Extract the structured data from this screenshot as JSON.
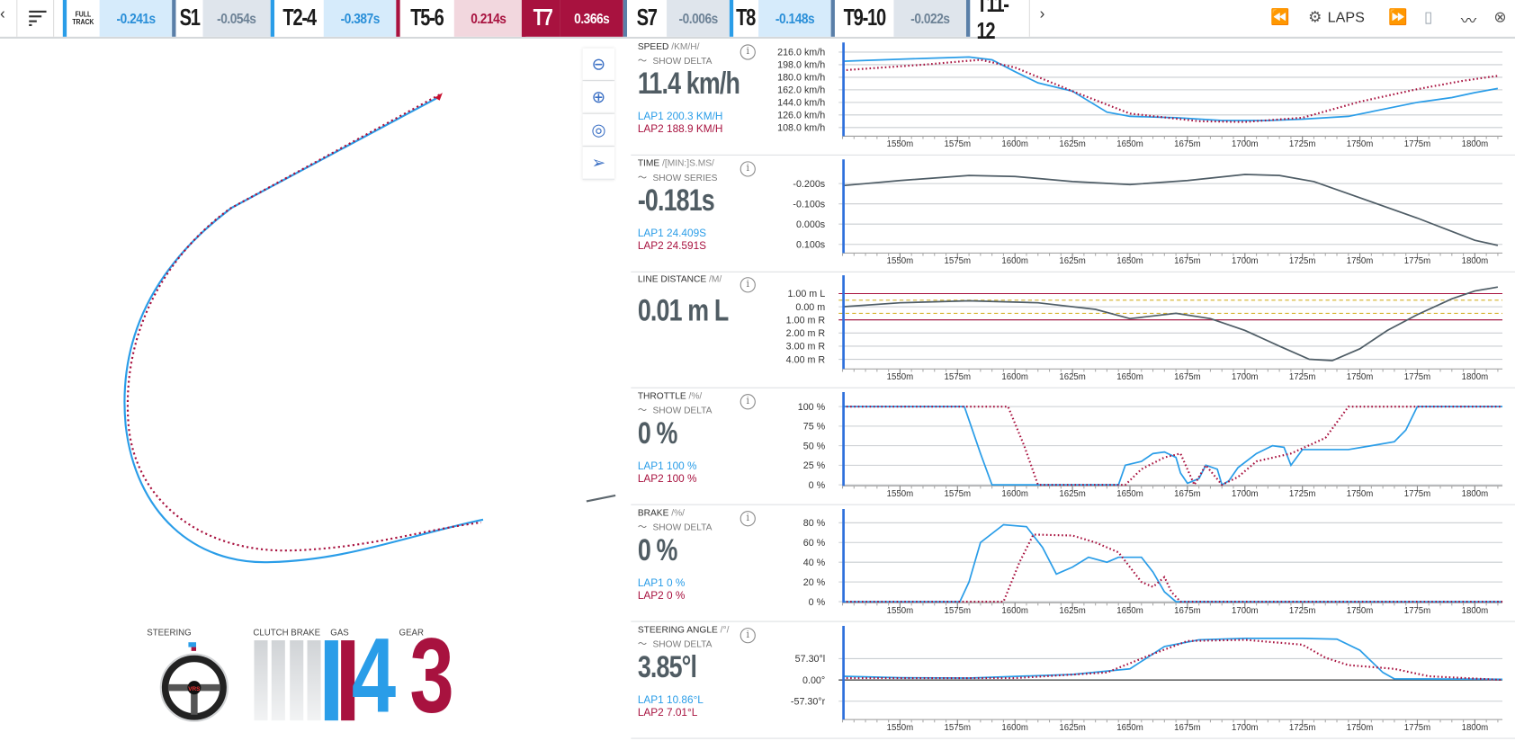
{
  "topbar": {
    "back_icon": "chevron-left-icon",
    "menu_icon": "sort-lines-icon",
    "full_track_label": [
      "FULL",
      "TRACK"
    ],
    "full_track_delta": "-0.241s",
    "sectors": [
      {
        "name": "S1",
        "delta": "-0.054s",
        "state": "neutral"
      },
      {
        "name": "T2-4",
        "delta": "-0.387s",
        "state": "faster"
      },
      {
        "name": "T5-6",
        "delta": "0.214s",
        "state": "slower"
      },
      {
        "name": "T7",
        "delta": "0.366s",
        "state": "selected"
      },
      {
        "name": "S7",
        "delta": "-0.006s",
        "state": "neutral"
      },
      {
        "name": "T8",
        "delta": "-0.148s",
        "state": "faster"
      },
      {
        "name": "T9-10",
        "delta": "-0.022s",
        "state": "neutral"
      },
      {
        "name": "T11-12",
        "delta": "",
        "state": "neutral"
      }
    ],
    "next_icon": "chevron-right-icon",
    "laps_label": "LAPS",
    "right_icons": [
      "rewind-icon",
      "gear-icon",
      "fast-forward-icon",
      "map-icon",
      "chart-line-icon",
      "close-circle-icon"
    ]
  },
  "colors": {
    "lap1": "#2a9de8",
    "lap2": "#a8123f",
    "text": "#505c63",
    "faster_bg": "#d6ebfb",
    "slower_bg": "#f2d7de",
    "neutral_bg": "#dfe5ec",
    "selected_bg": "#a8123f"
  },
  "map_tools": [
    "zoom-out-icon",
    "zoom-in-icon",
    "compass-icon",
    "locate-arrow-icon"
  ],
  "x_ticks": [
    "1550m",
    "1575m",
    "1600m",
    "1625m",
    "1650m",
    "1675m",
    "1700m",
    "1725m",
    "1750m",
    "1775m",
    "1800m"
  ],
  "panels": [
    {
      "label": "SPEED",
      "unit": "/KM/H/",
      "toggle": "SHOW DELTA",
      "value": "11.4 km/h",
      "lap1": "LAP1 200.3 KM/H",
      "lap2": "LAP2 188.9 KM/H"
    },
    {
      "label": "TIME",
      "unit": "/[MIN:]S.MS/",
      "toggle": "SHOW SERIES",
      "value": "-0.181s",
      "lap1": "LAP1 24.409S",
      "lap2": "LAP2 24.591S"
    },
    {
      "label": "LINE DISTANCE",
      "unit": "/M/",
      "toggle": "",
      "value": "0.01 m L",
      "lap1": "",
      "lap2": ""
    },
    {
      "label": "THROTTLE",
      "unit": "/%/",
      "toggle": "SHOW DELTA",
      "value": "0 %",
      "lap1": "LAP1 100 %",
      "lap2": "LAP2 100 %"
    },
    {
      "label": "BRAKE",
      "unit": "/%/",
      "toggle": "SHOW DELTA",
      "value": "0 %",
      "lap1": "LAP1 0 %",
      "lap2": "LAP2 0 %"
    },
    {
      "label": "STEERING ANGLE",
      "unit": "/°/",
      "toggle": "SHOW DELTA",
      "value": "3.85°l",
      "lap1": "LAP1 10.86°L",
      "lap2": "LAP2 7.01°L"
    }
  ],
  "chart_data": [
    {
      "type": "line",
      "xlim": [
        1525,
        1812
      ],
      "ylim": [
        97,
        227
      ],
      "yticks": [
        {
          "v": 216,
          "t": "216.0 km/h"
        },
        {
          "v": 198,
          "t": "198.0 km/h"
        },
        {
          "v": 180,
          "t": "180.0 km/h"
        },
        {
          "v": 162,
          "t": "162.0 km/h"
        },
        {
          "v": 144,
          "t": "144.0 km/h"
        },
        {
          "v": 126,
          "t": "126.0 km/h"
        },
        {
          "v": 108,
          "t": "108.0 km/h"
        }
      ],
      "series": [
        {
          "lap": 1,
          "points": [
            [
              1525,
              203
            ],
            [
              1560,
              207
            ],
            [
              1580,
              209
            ],
            [
              1590,
              205
            ],
            [
              1600,
              188
            ],
            [
              1610,
              172
            ],
            [
              1625,
              160
            ],
            [
              1640,
              130
            ],
            [
              1650,
              124
            ],
            [
              1670,
              122
            ],
            [
              1690,
              118
            ],
            [
              1710,
              118
            ],
            [
              1725,
              120
            ],
            [
              1745,
              124
            ],
            [
              1760,
              134
            ],
            [
              1775,
              144
            ],
            [
              1790,
              151
            ],
            [
              1800,
              158
            ],
            [
              1810,
              164
            ]
          ]
        },
        {
          "lap": 2,
          "points": [
            [
              1525,
              190
            ],
            [
              1560,
              198
            ],
            [
              1585,
              205
            ],
            [
              1600,
              194
            ],
            [
              1625,
              160
            ],
            [
              1650,
              128
            ],
            [
              1680,
              117
            ],
            [
              1700,
              116
            ],
            [
              1725,
              122
            ],
            [
              1750,
              145
            ],
            [
              1775,
              163
            ],
            [
              1795,
              175
            ],
            [
              1810,
              182
            ]
          ]
        }
      ]
    },
    {
      "type": "line",
      "xlim": [
        1525,
        1812
      ],
      "ylim": [
        -0.31,
        0.138
      ],
      "inverted": true,
      "yticks": [
        {
          "v": -0.2,
          "t": "-0.200s"
        },
        {
          "v": -0.1,
          "t": "-0.100s"
        },
        {
          "v": 0,
          "t": "0.000s"
        },
        {
          "v": 0.1,
          "t": "0.100s"
        }
      ],
      "series": [
        {
          "lap": 0,
          "points": [
            [
              1525,
              -0.19
            ],
            [
              1550,
              -0.215
            ],
            [
              1580,
              -0.24
            ],
            [
              1600,
              -0.235
            ],
            [
              1625,
              -0.21
            ],
            [
              1650,
              -0.195
            ],
            [
              1675,
              -0.215
            ],
            [
              1700,
              -0.245
            ],
            [
              1715,
              -0.24
            ],
            [
              1730,
              -0.21
            ],
            [
              1750,
              -0.13
            ],
            [
              1775,
              -0.03
            ],
            [
              1800,
              0.08
            ],
            [
              1810,
              0.105
            ]
          ]
        }
      ]
    },
    {
      "type": "line",
      "xlim": [
        1525,
        1812
      ],
      "ylim": [
        -4.66,
        2.25
      ],
      "yticks": [
        {
          "v": 1,
          "t": "1.00 m L"
        },
        {
          "v": 0,
          "t": "0.00 m"
        },
        {
          "v": -1,
          "t": "1.00 m R"
        },
        {
          "v": -2,
          "t": "2.00 m R"
        },
        {
          "v": -3,
          "t": "3.00 m R"
        },
        {
          "v": -4,
          "t": "4.00 m R"
        }
      ],
      "reference_lines": [
        {
          "v": 1,
          "color": "#a8123f"
        },
        {
          "v": -1,
          "color": "#a8123f"
        },
        {
          "v": 0.5,
          "color": "#d4b12a",
          "dashed": true
        },
        {
          "v": -0.5,
          "color": "#d4b12a",
          "dashed": true
        }
      ],
      "series": [
        {
          "lap": 0,
          "points": [
            [
              1525,
              0
            ],
            [
              1550,
              0.3
            ],
            [
              1580,
              0.45
            ],
            [
              1610,
              0.3
            ],
            [
              1635,
              -0.2
            ],
            [
              1650,
              -0.9
            ],
            [
              1670,
              -0.5
            ],
            [
              1685,
              -0.9
            ],
            [
              1700,
              -1.8
            ],
            [
              1715,
              -3.0
            ],
            [
              1728,
              -4.0
            ],
            [
              1738,
              -4.1
            ],
            [
              1750,
              -3.2
            ],
            [
              1762,
              -1.8
            ],
            [
              1775,
              -0.6
            ],
            [
              1790,
              0.6
            ],
            [
              1800,
              1.2
            ],
            [
              1810,
              1.5
            ]
          ]
        }
      ]
    },
    {
      "type": "line",
      "xlim": [
        1525,
        1812
      ],
      "ylim": [
        0,
        116
      ],
      "yticks": [
        {
          "v": 100,
          "t": "100 %"
        },
        {
          "v": 75,
          "t": "75 %"
        },
        {
          "v": 50,
          "t": "50 %"
        },
        {
          "v": 25,
          "t": "25 %"
        },
        {
          "v": 0,
          "t": "0 %"
        }
      ],
      "series": [
        {
          "lap": 1,
          "points": [
            [
              1525,
              100
            ],
            [
              1578,
              100
            ],
            [
              1585,
              40
            ],
            [
              1590,
              0
            ],
            [
              1645,
              0
            ],
            [
              1648,
              25
            ],
            [
              1655,
              30
            ],
            [
              1660,
              40
            ],
            [
              1665,
              42
            ],
            [
              1670,
              35
            ],
            [
              1672,
              15
            ],
            [
              1675,
              2
            ],
            [
              1680,
              8
            ],
            [
              1683,
              25
            ],
            [
              1688,
              20
            ],
            [
              1690,
              0
            ],
            [
              1693,
              5
            ],
            [
              1697,
              22
            ],
            [
              1705,
              40
            ],
            [
              1712,
              50
            ],
            [
              1717,
              48
            ],
            [
              1720,
              25
            ],
            [
              1725,
              45
            ],
            [
              1745,
              45
            ],
            [
              1755,
              50
            ],
            [
              1765,
              55
            ],
            [
              1770,
              70
            ],
            [
              1775,
              100
            ],
            [
              1812,
              100
            ]
          ]
        },
        {
          "lap": 2,
          "points": [
            [
              1525,
              100
            ],
            [
              1597,
              100
            ],
            [
              1604,
              50
            ],
            [
              1610,
              0
            ],
            [
              1648,
              0
            ],
            [
              1655,
              20
            ],
            [
              1665,
              35
            ],
            [
              1672,
              40
            ],
            [
              1678,
              0
            ],
            [
              1683,
              25
            ],
            [
              1690,
              0
            ],
            [
              1697,
              10
            ],
            [
              1705,
              30
            ],
            [
              1720,
              40
            ],
            [
              1735,
              60
            ],
            [
              1740,
              80
            ],
            [
              1745,
              100
            ],
            [
              1812,
              100
            ]
          ]
        }
      ]
    },
    {
      "type": "line",
      "xlim": [
        1525,
        1812
      ],
      "ylim": [
        0,
        92
      ],
      "yticks": [
        {
          "v": 80,
          "t": "80 %"
        },
        {
          "v": 60,
          "t": "60 %"
        },
        {
          "v": 40,
          "t": "40 %"
        },
        {
          "v": 20,
          "t": "20 %"
        },
        {
          "v": 0,
          "t": "0 %"
        }
      ],
      "series": [
        {
          "lap": 1,
          "points": [
            [
              1525,
              0
            ],
            [
              1576,
              0
            ],
            [
              1580,
              20
            ],
            [
              1585,
              60
            ],
            [
              1595,
              78
            ],
            [
              1605,
              76
            ],
            [
              1612,
              55
            ],
            [
              1618,
              28
            ],
            [
              1625,
              35
            ],
            [
              1632,
              45
            ],
            [
              1640,
              40
            ],
            [
              1645,
              45
            ],
            [
              1655,
              45
            ],
            [
              1660,
              30
            ],
            [
              1665,
              10
            ],
            [
              1670,
              0
            ],
            [
              1812,
              0
            ]
          ]
        },
        {
          "lap": 2,
          "points": [
            [
              1525,
              0
            ],
            [
              1595,
              0
            ],
            [
              1602,
              40
            ],
            [
              1608,
              68
            ],
            [
              1625,
              67
            ],
            [
              1635,
              60
            ],
            [
              1645,
              50
            ],
            [
              1655,
              20
            ],
            [
              1660,
              15
            ],
            [
              1665,
              25
            ],
            [
              1668,
              10
            ],
            [
              1672,
              0
            ],
            [
              1812,
              0
            ]
          ]
        }
      ]
    },
    {
      "type": "line",
      "xlim": [
        1525,
        1812
      ],
      "ylim": [
        -104,
        140.6
      ],
      "yticks": [
        {
          "v": 57.3,
          "t": "57.30°l"
        },
        {
          "v": 0,
          "t": "0.00°"
        },
        {
          "v": -57.3,
          "t": "-57.30°r"
        }
      ],
      "zero_line": true,
      "series": [
        {
          "lap": 1,
          "points": [
            [
              1525,
              10
            ],
            [
              1550,
              6
            ],
            [
              1580,
              5
            ],
            [
              1625,
              15
            ],
            [
              1650,
              30
            ],
            [
              1665,
              90
            ],
            [
              1680,
              108
            ],
            [
              1700,
              112
            ],
            [
              1725,
              112
            ],
            [
              1740,
              110
            ],
            [
              1750,
              80
            ],
            [
              1760,
              20
            ],
            [
              1765,
              3
            ],
            [
              1812,
              2
            ]
          ]
        },
        {
          "lap": 2,
          "points": [
            [
              1525,
              5
            ],
            [
              1600,
              5
            ],
            [
              1640,
              20
            ],
            [
              1660,
              70
            ],
            [
              1675,
              105
            ],
            [
              1700,
              108
            ],
            [
              1725,
              95
            ],
            [
              1735,
              60
            ],
            [
              1745,
              40
            ],
            [
              1765,
              30
            ],
            [
              1780,
              10
            ],
            [
              1812,
              0
            ]
          ]
        }
      ]
    }
  ],
  "dashboard": {
    "steering_label": "STEERING",
    "clutch_label": "CLUTCH",
    "brake_label": "BRAKE",
    "gas_label": "GAS",
    "gear_label": "GEAR",
    "gear_lap1": "4",
    "gear_lap2": "3",
    "gas_lap1": 100,
    "gas_lap2": 100,
    "brake_lap1": 0,
    "brake_lap2": 0,
    "clutch_lap1": 0,
    "clutch_lap2": 0,
    "wheel_logo": "VRS"
  }
}
